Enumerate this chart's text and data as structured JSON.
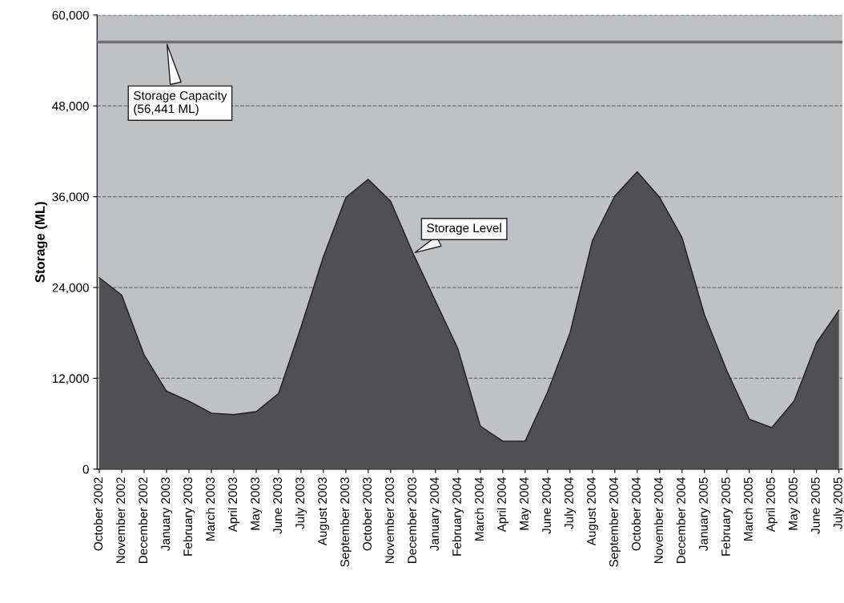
{
  "chart_data": {
    "type": "area",
    "ylabel": "Storage (ML)",
    "categories": [
      "October 2002",
      "November 2002",
      "December 2002",
      "January 2003",
      "February 2003",
      "March 2003",
      "April 2003",
      "May 2003",
      "June 2003",
      "July 2003",
      "August 2003",
      "September 2003",
      "October 2003",
      "November 2003",
      "December 2003",
      "January 2004",
      "February 2004",
      "March 2004",
      "April 2004",
      "May 2004",
      "June 2004",
      "July 2004",
      "August 2004",
      "September 2004",
      "October 2004",
      "November 2004",
      "December 2004",
      "January 2005",
      "February 2005",
      "March 2005",
      "April 2005",
      "May 2005",
      "June 2005",
      "July 2005"
    ],
    "series": [
      {
        "color": "#505053",
        "values": [
          25300,
          23000,
          15100,
          10300,
          9000,
          7400,
          7200,
          7600,
          10000,
          18800,
          28100,
          35900,
          38300,
          35400,
          28500,
          22200,
          15900,
          5700,
          3700,
          3700,
          10200,
          18000,
          30200,
          36100,
          39300,
          35900,
          30600,
          20400,
          13000,
          6600,
          5500,
          9000,
          16700,
          21000
        ]
      }
    ],
    "ylim": [
      0,
      60000
    ],
    "yticks": [
      0,
      {
        "value": 12000,
        "label": "12,000"
      },
      {
        "value": 24000,
        "label": "24,000"
      },
      {
        "value": 36000,
        "label": "36,000"
      },
      {
        "value": 48000,
        "label": "48,000"
      },
      {
        "value": 60000,
        "label": "60,000"
      }
    ],
    "grid": "y",
    "ref_lines": [
      {
        "axis": "y",
        "value": 56441,
        "color": "#6e6e72"
      }
    ],
    "annotations": [
      {
        "text": "Storage Capacity\n(56,441 ML)",
        "x": "January 2003",
        "y": 56441
      },
      {
        "text": "Storage Level",
        "x": "December 2003",
        "y": 28500
      }
    ],
    "legend": false
  }
}
